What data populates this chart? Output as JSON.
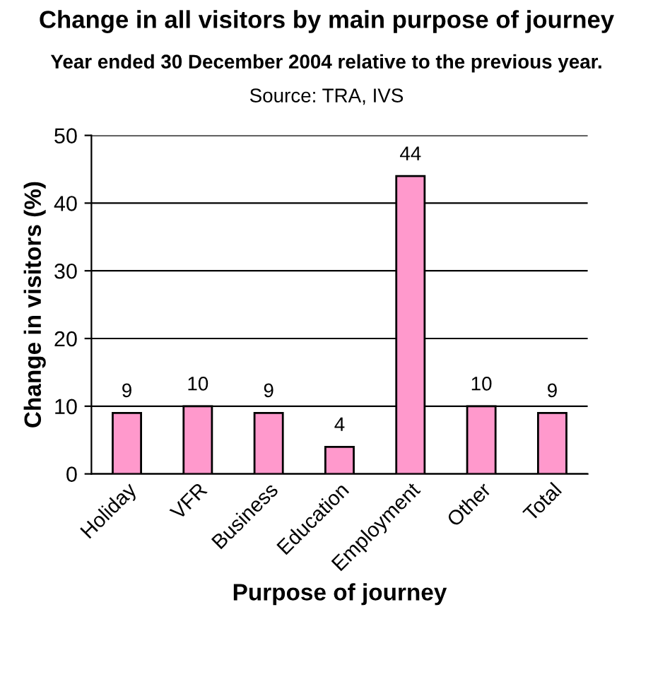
{
  "chart_data": {
    "type": "bar",
    "title": "Change in all visitors by main purpose of journey",
    "subtitle": "Year ended 30 December 2004 relative to the previous year.",
    "annotations": [
      "Source: TRA, IVS"
    ],
    "xlabel": "Purpose of journey",
    "ylabel": "Change in visitors (%)",
    "categories": [
      "Holiday",
      "VFR",
      "Business",
      "Education",
      "Employment",
      "Other",
      "Total"
    ],
    "values": [
      9,
      10,
      9,
      4,
      44,
      10,
      9
    ],
    "color": "#ff99cc",
    "data_labels": true,
    "ylim": [
      0,
      50
    ],
    "yticks": [
      0,
      10,
      20,
      30,
      40,
      50
    ],
    "grid": "y"
  }
}
